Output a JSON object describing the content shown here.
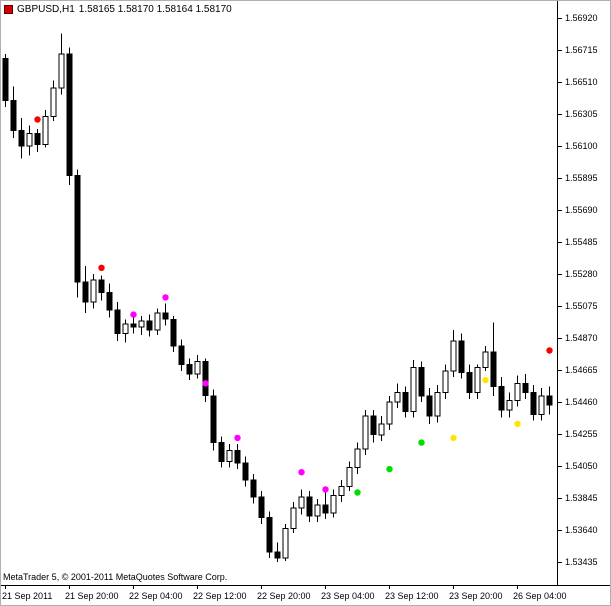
{
  "header": {
    "symbol": "GBPUSD,H1",
    "ohlc": "1.58165 1.58170 1.58164 1.58170"
  },
  "footer": {
    "copyright": "MetaTrader 5, © 2001-2011 MetaQuotes Software Corp."
  },
  "colors": {
    "background": "#ffffff",
    "bull": "#ffffff",
    "bear": "#000000",
    "outline": "#000000",
    "signal_red": "#ff0000",
    "signal_magenta": "#ff00ff",
    "signal_green": "#00dd00",
    "signal_yellow": "#ffe600",
    "symbol_icon": "#d40000"
  },
  "chart_data": {
    "type": "candlestick",
    "symbol": "GBPUSD",
    "timeframe": "H1",
    "title": "GBPUSD,H1",
    "grid": false,
    "y_axis": {
      "min": 1.53435,
      "max": 1.5692,
      "step": 0.00205,
      "labels": [
        "1.56920",
        "1.56715",
        "1.56510",
        "1.56305",
        "1.56100",
        "1.55895",
        "1.55690",
        "1.55485",
        "1.55280",
        "1.55075",
        "1.54870",
        "1.54665",
        "1.54460",
        "1.54255",
        "1.54050",
        "1.53845",
        "1.53640",
        "1.53435"
      ]
    },
    "x_axis": {
      "labels": [
        "21 Sep 2011",
        "21 Sep 20:00",
        "22 Sep 04:00",
        "22 Sep 12:00",
        "22 Sep 20:00",
        "23 Sep 04:00",
        "23 Sep 12:00",
        "23 Sep 20:00",
        "26 Sep 04:00"
      ],
      "label_bar_indices": [
        0,
        8,
        16,
        24,
        32,
        40,
        48,
        56,
        64
      ]
    },
    "candles": [
      [
        1.5666,
        1.5669,
        1.5635,
        1.5639
      ],
      [
        1.5639,
        1.5648,
        1.5615,
        1.562
      ],
      [
        1.562,
        1.5628,
        1.5602,
        1.561
      ],
      [
        1.561,
        1.5623,
        1.5604,
        1.5618
      ],
      [
        1.5618,
        1.5621,
        1.5606,
        1.5611
      ],
      [
        1.5611,
        1.5633,
        1.5609,
        1.5629
      ],
      [
        1.5629,
        1.5652,
        1.5626,
        1.5647
      ],
      [
        1.5647,
        1.5682,
        1.5643,
        1.5669
      ],
      [
        1.5669,
        1.5673,
        1.5585,
        1.5591
      ],
      [
        1.5591,
        1.5595,
        1.5513,
        1.5523
      ],
      [
        1.5523,
        1.5533,
        1.5503,
        1.551
      ],
      [
        1.551,
        1.5528,
        1.5506,
        1.5524
      ],
      [
        1.5524,
        1.5527,
        1.5511,
        1.5516
      ],
      [
        1.5516,
        1.5522,
        1.55,
        1.5505
      ],
      [
        1.5505,
        1.551,
        1.5485,
        1.549
      ],
      [
        1.549,
        1.5499,
        1.5484,
        1.5496
      ],
      [
        1.5496,
        1.55,
        1.549,
        1.5494
      ],
      [
        1.5494,
        1.5501,
        1.5489,
        1.5498
      ],
      [
        1.5498,
        1.5502,
        1.5488,
        1.5492
      ],
      [
        1.5492,
        1.5506,
        1.5489,
        1.5503
      ],
      [
        1.5503,
        1.5509,
        1.5495,
        1.5499
      ],
      [
        1.5499,
        1.5501,
        1.5478,
        1.5482
      ],
      [
        1.5482,
        1.5486,
        1.5466,
        1.547
      ],
      [
        1.547,
        1.5474,
        1.546,
        1.5464
      ],
      [
        1.5464,
        1.5476,
        1.5461,
        1.5472
      ],
      [
        1.5472,
        1.5474,
        1.5446,
        1.545
      ],
      [
        1.545,
        1.5454,
        1.5415,
        1.542
      ],
      [
        1.542,
        1.5424,
        1.5404,
        1.5408
      ],
      [
        1.5408,
        1.5419,
        1.5404,
        1.5415
      ],
      [
        1.5415,
        1.5419,
        1.5403,
        1.5407
      ],
      [
        1.5407,
        1.5411,
        1.5392,
        1.5396
      ],
      [
        1.5396,
        1.54,
        1.5381,
        1.5385
      ],
      [
        1.5385,
        1.5389,
        1.5368,
        1.5372
      ],
      [
        1.5372,
        1.5376,
        1.5346,
        1.535
      ],
      [
        1.535,
        1.5356,
        1.53435,
        1.5346
      ],
      [
        1.5346,
        1.5368,
        1.5344,
        1.5365
      ],
      [
        1.5365,
        1.5382,
        1.5362,
        1.5378
      ],
      [
        1.5378,
        1.539,
        1.5374,
        1.5385
      ],
      [
        1.5385,
        1.5389,
        1.5369,
        1.5373
      ],
      [
        1.5373,
        1.5384,
        1.5369,
        1.538
      ],
      [
        1.538,
        1.5388,
        1.5371,
        1.5375
      ],
      [
        1.5375,
        1.539,
        1.5372,
        1.5386
      ],
      [
        1.5386,
        1.5396,
        1.5382,
        1.5392
      ],
      [
        1.5392,
        1.5408,
        1.5389,
        1.5404
      ],
      [
        1.5404,
        1.542,
        1.54,
        1.5416
      ],
      [
        1.5416,
        1.5441,
        1.5412,
        1.5437
      ],
      [
        1.5437,
        1.5441,
        1.542,
        1.5425
      ],
      [
        1.5425,
        1.5437,
        1.5421,
        1.5432
      ],
      [
        1.5432,
        1.545,
        1.5428,
        1.5446
      ],
      [
        1.5446,
        1.5458,
        1.5442,
        1.5452
      ],
      [
        1.5452,
        1.5456,
        1.5436,
        1.544
      ],
      [
        1.544,
        1.5473,
        1.5436,
        1.5468
      ],
      [
        1.5468,
        1.5472,
        1.5446,
        1.545
      ],
      [
        1.545,
        1.5455,
        1.5432,
        1.5437
      ],
      [
        1.5437,
        1.5457,
        1.5433,
        1.5452
      ],
      [
        1.5452,
        1.547,
        1.5448,
        1.5466
      ],
      [
        1.5466,
        1.5492,
        1.5462,
        1.5485
      ],
      [
        1.5485,
        1.549,
        1.5461,
        1.5465
      ],
      [
        1.5465,
        1.547,
        1.5448,
        1.5452
      ],
      [
        1.5452,
        1.547,
        1.5448,
        1.5468
      ],
      [
        1.5468,
        1.5482,
        1.5466,
        1.5478
      ],
      [
        1.5478,
        1.5497,
        1.545,
        1.5456
      ],
      [
        1.5456,
        1.5462,
        1.5436,
        1.5441
      ],
      [
        1.5441,
        1.5452,
        1.5436,
        1.5447
      ],
      [
        1.5447,
        1.5463,
        1.5443,
        1.5458
      ],
      [
        1.5458,
        1.5464,
        1.5448,
        1.5452
      ],
      [
        1.5452,
        1.5457,
        1.5434,
        1.5438
      ],
      [
        1.5438,
        1.5455,
        1.5434,
        1.545
      ],
      [
        1.545,
        1.5456,
        1.5438,
        1.5444
      ]
    ],
    "signals": [
      {
        "bar": 4,
        "price": 1.5627,
        "color": "red"
      },
      {
        "bar": 12,
        "price": 1.5532,
        "color": "red"
      },
      {
        "bar": 16,
        "price": 1.5502,
        "color": "magenta"
      },
      {
        "bar": 20,
        "price": 1.5513,
        "color": "magenta"
      },
      {
        "bar": 25,
        "price": 1.5458,
        "color": "magenta"
      },
      {
        "bar": 29,
        "price": 1.5423,
        "color": "magenta"
      },
      {
        "bar": 37,
        "price": 1.5401,
        "color": "magenta"
      },
      {
        "bar": 40,
        "price": 1.539,
        "color": "magenta"
      },
      {
        "bar": 44,
        "price": 1.5388,
        "color": "green"
      },
      {
        "bar": 48,
        "price": 1.5403,
        "color": "green"
      },
      {
        "bar": 52,
        "price": 1.542,
        "color": "green"
      },
      {
        "bar": 56,
        "price": 1.5423,
        "color": "yellow"
      },
      {
        "bar": 60,
        "price": 1.546,
        "color": "yellow"
      },
      {
        "bar": 64,
        "price": 1.5432,
        "color": "yellow"
      },
      {
        "bar": 68,
        "price": 1.5479,
        "color": "red"
      }
    ]
  }
}
